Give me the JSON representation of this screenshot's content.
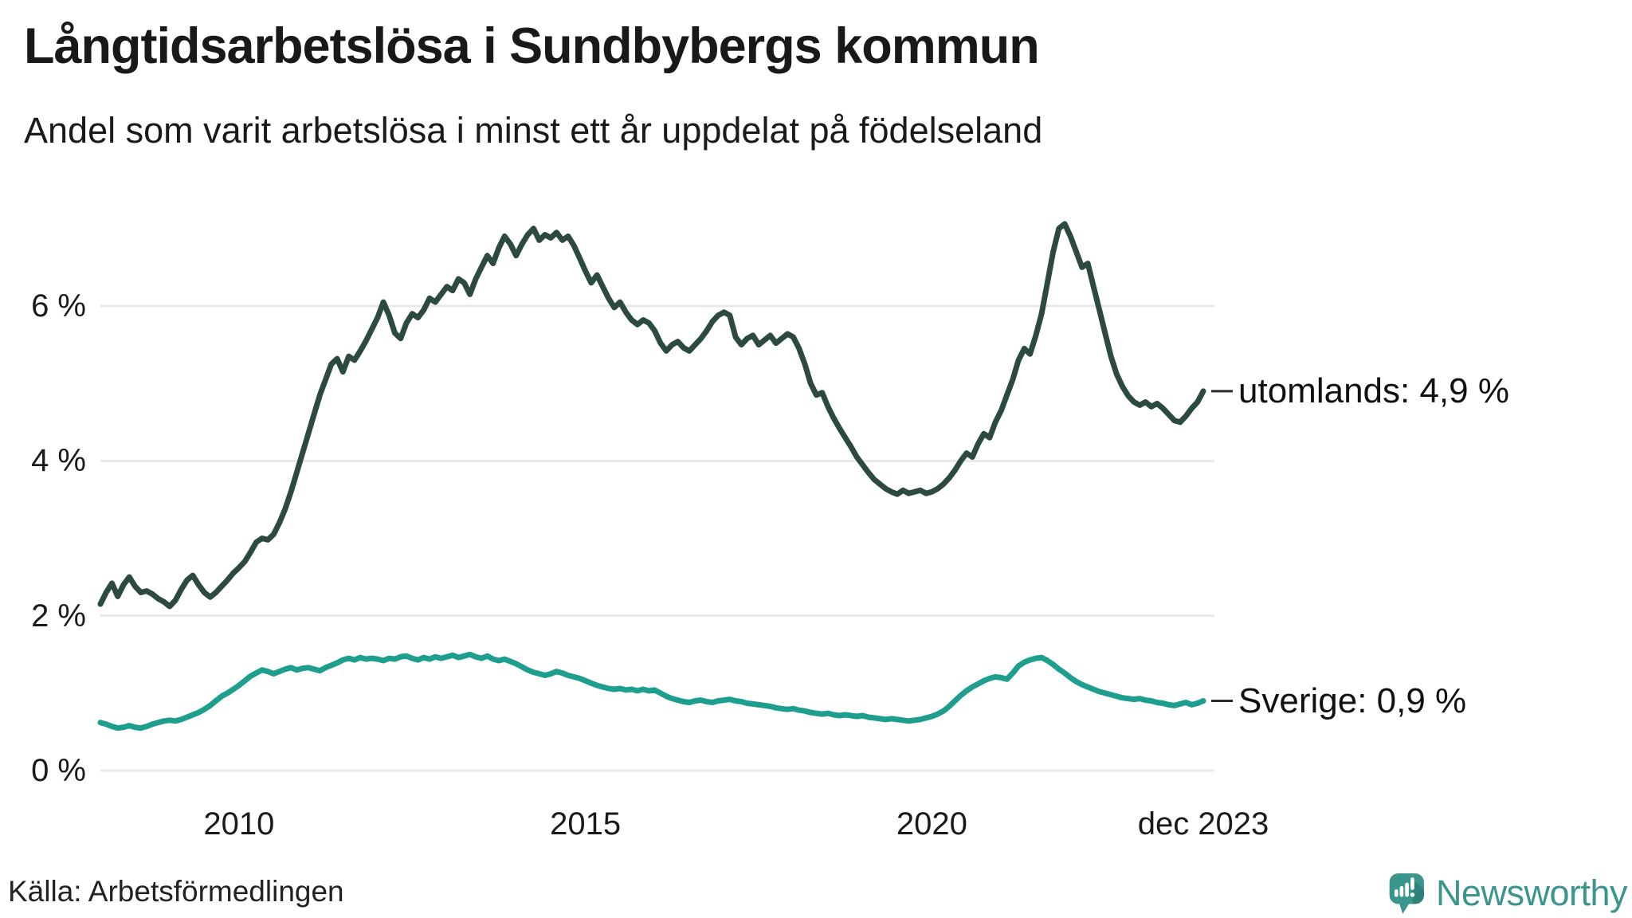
{
  "title": "Långtidsarbetslösa i Sundbybergs kommun",
  "subtitle": "Andel som varit arbetslösa i minst ett år uppdelat på födelseland",
  "source": "Källa: Arbetsförmedlingen",
  "branding": {
    "wordmark": "Newsworthy",
    "logo_icon": "speech-bubble-bar-chart",
    "color": "#3a968d"
  },
  "series_labels": {
    "utomlands": "utomlands: 4,9 %",
    "sverige": "Sverige: 0,9 %"
  },
  "colors": {
    "utomlands": "#2c4a41",
    "sverige": "#1e9e8e",
    "grid": "#e8e8eb",
    "connector": "#2b2b2b",
    "text": "#1a1a1a"
  },
  "chart_data": {
    "type": "line",
    "unit": "%",
    "frequency": "monthly",
    "start": "2008-01",
    "end": "2023-12",
    "title": "Långtidsarbetslösa i Sundbybergs kommun",
    "subtitle": "Andel som varit arbetslösa i minst ett år uppdelat på födelseland",
    "ylim": [
      0,
      7.3
    ],
    "grid": true,
    "legend_position": "end-of-line",
    "y_ticks": [
      {
        "v": 0,
        "label": "0 %"
      },
      {
        "v": 2,
        "label": "2 %"
      },
      {
        "v": 4,
        "label": "4 %"
      },
      {
        "v": 6,
        "label": "6 %"
      }
    ],
    "x_ticks": [
      {
        "t": 2010,
        "label": "2010"
      },
      {
        "t": 2015,
        "label": "2015"
      },
      {
        "t": 2020,
        "label": "2020"
      },
      {
        "t": 2023.917,
        "label": "dec 2023"
      }
    ],
    "series": [
      {
        "name": "utomlands",
        "color": "#2c4a41",
        "end_label": "utomlands: 4,9 %",
        "last_value": 4.9,
        "values": [
          2.15,
          2.3,
          2.42,
          2.25,
          2.4,
          2.5,
          2.38,
          2.3,
          2.32,
          2.28,
          2.22,
          2.18,
          2.12,
          2.2,
          2.34,
          2.46,
          2.52,
          2.4,
          2.3,
          2.24,
          2.3,
          2.38,
          2.46,
          2.55,
          2.62,
          2.7,
          2.82,
          2.95,
          3.0,
          2.98,
          3.05,
          3.2,
          3.38,
          3.6,
          3.85,
          4.1,
          4.35,
          4.6,
          4.85,
          5.05,
          5.25,
          5.32,
          5.15,
          5.35,
          5.3,
          5.42,
          5.55,
          5.7,
          5.85,
          6.05,
          5.88,
          5.65,
          5.58,
          5.78,
          5.9,
          5.85,
          5.95,
          6.1,
          6.05,
          6.15,
          6.25,
          6.2,
          6.35,
          6.3,
          6.15,
          6.35,
          6.5,
          6.65,
          6.55,
          6.75,
          6.9,
          6.8,
          6.65,
          6.8,
          6.92,
          7.0,
          6.85,
          6.92,
          6.88,
          6.95,
          6.85,
          6.9,
          6.78,
          6.62,
          6.45,
          6.3,
          6.4,
          6.25,
          6.1,
          5.98,
          6.05,
          5.92,
          5.82,
          5.76,
          5.82,
          5.78,
          5.68,
          5.52,
          5.42,
          5.5,
          5.54,
          5.46,
          5.42,
          5.5,
          5.58,
          5.68,
          5.8,
          5.88,
          5.92,
          5.88,
          5.6,
          5.5,
          5.58,
          5.62,
          5.5,
          5.56,
          5.62,
          5.52,
          5.58,
          5.64,
          5.6,
          5.45,
          5.25,
          5.0,
          4.85,
          4.88,
          4.7,
          4.55,
          4.42,
          4.3,
          4.18,
          4.05,
          3.95,
          3.85,
          3.76,
          3.7,
          3.64,
          3.6,
          3.57,
          3.62,
          3.58,
          3.6,
          3.62,
          3.58,
          3.6,
          3.64,
          3.7,
          3.78,
          3.88,
          4.0,
          4.1,
          4.05,
          4.22,
          4.35,
          4.3,
          4.5,
          4.65,
          4.85,
          5.05,
          5.3,
          5.45,
          5.38,
          5.62,
          5.9,
          6.3,
          6.7,
          7.0,
          7.06,
          6.9,
          6.7,
          6.5,
          6.55,
          6.25,
          5.95,
          5.65,
          5.35,
          5.12,
          4.96,
          4.84,
          4.76,
          4.72,
          4.76,
          4.7,
          4.74,
          4.68,
          4.6,
          4.52,
          4.5,
          4.58,
          4.68,
          4.76,
          4.9
        ]
      },
      {
        "name": "Sverige",
        "color": "#1e9e8e",
        "end_label": "Sverige: 0,9 %",
        "last_value": 0.9,
        "values": [
          0.62,
          0.6,
          0.57,
          0.55,
          0.56,
          0.58,
          0.56,
          0.55,
          0.57,
          0.6,
          0.62,
          0.64,
          0.65,
          0.64,
          0.66,
          0.69,
          0.72,
          0.75,
          0.79,
          0.84,
          0.9,
          0.96,
          1.0,
          1.05,
          1.1,
          1.16,
          1.22,
          1.26,
          1.3,
          1.28,
          1.25,
          1.28,
          1.31,
          1.33,
          1.3,
          1.32,
          1.33,
          1.31,
          1.29,
          1.33,
          1.36,
          1.39,
          1.43,
          1.45,
          1.43,
          1.46,
          1.44,
          1.45,
          1.44,
          1.42,
          1.45,
          1.44,
          1.47,
          1.48,
          1.45,
          1.43,
          1.46,
          1.44,
          1.47,
          1.45,
          1.47,
          1.49,
          1.46,
          1.48,
          1.5,
          1.47,
          1.45,
          1.48,
          1.44,
          1.42,
          1.44,
          1.41,
          1.38,
          1.34,
          1.3,
          1.27,
          1.25,
          1.23,
          1.25,
          1.28,
          1.26,
          1.23,
          1.21,
          1.19,
          1.16,
          1.13,
          1.1,
          1.08,
          1.06,
          1.05,
          1.06,
          1.04,
          1.05,
          1.03,
          1.05,
          1.03,
          1.04,
          1.0,
          0.96,
          0.93,
          0.91,
          0.89,
          0.88,
          0.9,
          0.91,
          0.89,
          0.88,
          0.9,
          0.91,
          0.92,
          0.9,
          0.89,
          0.87,
          0.86,
          0.85,
          0.84,
          0.83,
          0.81,
          0.8,
          0.79,
          0.8,
          0.78,
          0.77,
          0.75,
          0.74,
          0.73,
          0.74,
          0.72,
          0.71,
          0.72,
          0.71,
          0.7,
          0.71,
          0.69,
          0.68,
          0.67,
          0.66,
          0.67,
          0.66,
          0.65,
          0.64,
          0.65,
          0.66,
          0.68,
          0.7,
          0.73,
          0.77,
          0.83,
          0.9,
          0.97,
          1.03,
          1.08,
          1.12,
          1.16,
          1.19,
          1.21,
          1.2,
          1.18,
          1.26,
          1.35,
          1.4,
          1.43,
          1.45,
          1.46,
          1.42,
          1.37,
          1.31,
          1.26,
          1.2,
          1.15,
          1.11,
          1.08,
          1.05,
          1.02,
          1.0,
          0.98,
          0.96,
          0.94,
          0.93,
          0.92,
          0.93,
          0.91,
          0.9,
          0.88,
          0.87,
          0.85,
          0.84,
          0.86,
          0.88,
          0.85,
          0.87,
          0.9
        ]
      }
    ]
  }
}
